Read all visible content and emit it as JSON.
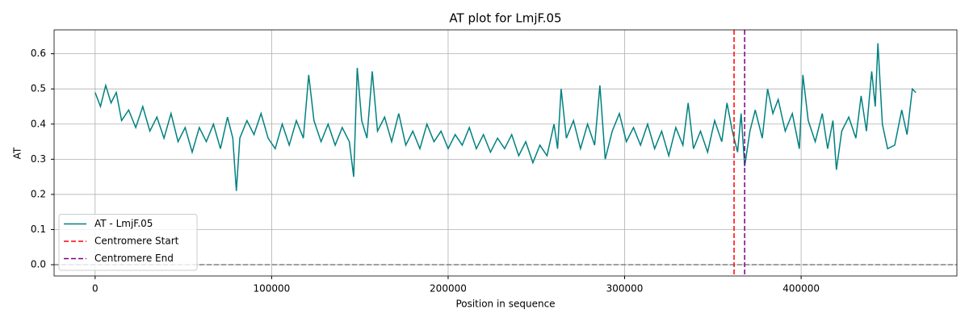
{
  "chart_data": {
    "type": "line",
    "title": "AT plot for LmjF.05",
    "xlabel": "Position in sequence",
    "ylabel": "AT",
    "x": [
      0,
      3000,
      6000,
      9000,
      12000,
      15000,
      19000,
      23000,
      27000,
      31000,
      35000,
      39000,
      43000,
      47000,
      51000,
      55000,
      59000,
      63000,
      67000,
      71000,
      75000,
      78000,
      80000,
      82000,
      86000,
      90000,
      94000,
      98000,
      102000,
      106000,
      110000,
      114000,
      118000,
      121000,
      124000,
      128000,
      132000,
      136000,
      140000,
      144000,
      146500,
      148500,
      151000,
      154000,
      157000,
      160000,
      164000,
      168000,
      172000,
      176000,
      180000,
      184000,
      188000,
      192000,
      196000,
      200000,
      204000,
      208000,
      212000,
      216000,
      220000,
      224000,
      228000,
      232000,
      236000,
      240000,
      244000,
      248000,
      252000,
      256000,
      260000,
      262000,
      264000,
      267000,
      271000,
      275000,
      279000,
      283000,
      286000,
      289000,
      293000,
      297000,
      301000,
      305000,
      309000,
      313000,
      317000,
      321000,
      325000,
      329000,
      333000,
      336000,
      339000,
      343000,
      347000,
      351000,
      355000,
      358000,
      361000,
      364000,
      366000,
      368000,
      371000,
      374000,
      378000,
      381000,
      384000,
      387000,
      391000,
      395000,
      399000,
      401000,
      404000,
      408000,
      412000,
      415000,
      418000,
      420000,
      423000,
      427000,
      431000,
      434000,
      437000,
      440000,
      442000,
      443500,
      446000,
      449000,
      453000,
      457000,
      460000,
      463000,
      465000
    ],
    "series": [
      {
        "name": "AT - LmjF.05",
        "color": "#008080",
        "values": [
          0.49,
          0.45,
          0.51,
          0.46,
          0.49,
          0.41,
          0.44,
          0.39,
          0.45,
          0.38,
          0.42,
          0.36,
          0.43,
          0.35,
          0.39,
          0.32,
          0.39,
          0.35,
          0.4,
          0.33,
          0.42,
          0.36,
          0.21,
          0.36,
          0.41,
          0.37,
          0.43,
          0.36,
          0.33,
          0.4,
          0.34,
          0.41,
          0.36,
          0.54,
          0.41,
          0.35,
          0.4,
          0.34,
          0.39,
          0.35,
          0.25,
          0.56,
          0.41,
          0.36,
          0.55,
          0.38,
          0.42,
          0.35,
          0.43,
          0.34,
          0.38,
          0.33,
          0.4,
          0.35,
          0.38,
          0.33,
          0.37,
          0.34,
          0.39,
          0.33,
          0.37,
          0.32,
          0.36,
          0.33,
          0.37,
          0.31,
          0.35,
          0.29,
          0.34,
          0.31,
          0.4,
          0.33,
          0.5,
          0.36,
          0.41,
          0.33,
          0.4,
          0.34,
          0.51,
          0.3,
          0.38,
          0.43,
          0.35,
          0.39,
          0.34,
          0.4,
          0.33,
          0.38,
          0.31,
          0.39,
          0.34,
          0.46,
          0.33,
          0.38,
          0.32,
          0.41,
          0.35,
          0.46,
          0.38,
          0.32,
          0.43,
          0.28,
          0.38,
          0.44,
          0.36,
          0.5,
          0.43,
          0.47,
          0.38,
          0.43,
          0.33,
          0.54,
          0.41,
          0.35,
          0.43,
          0.33,
          0.41,
          0.27,
          0.38,
          0.42,
          0.36,
          0.48,
          0.38,
          0.55,
          0.45,
          0.63,
          0.4,
          0.33,
          0.34,
          0.44,
          0.37,
          0.5,
          0.49
        ]
      }
    ],
    "vlines": [
      {
        "name": "Centromere Start",
        "value": 362000,
        "color": "red"
      },
      {
        "name": "Centromere End",
        "value": 368000,
        "color": "purple"
      }
    ],
    "hline": {
      "value": 0,
      "color": "gray"
    },
    "xlim": [
      -23250,
      488250
    ],
    "xticks": [
      0,
      100000,
      200000,
      300000,
      400000
    ],
    "ylim": [
      -0.032,
      0.668
    ],
    "yticks": [
      {
        "value": 0,
        "label": "0.0"
      },
      0.1,
      0.2,
      0.3,
      0.4,
      0.5,
      0.6
    ],
    "grid": true,
    "legend": "lower left"
  }
}
